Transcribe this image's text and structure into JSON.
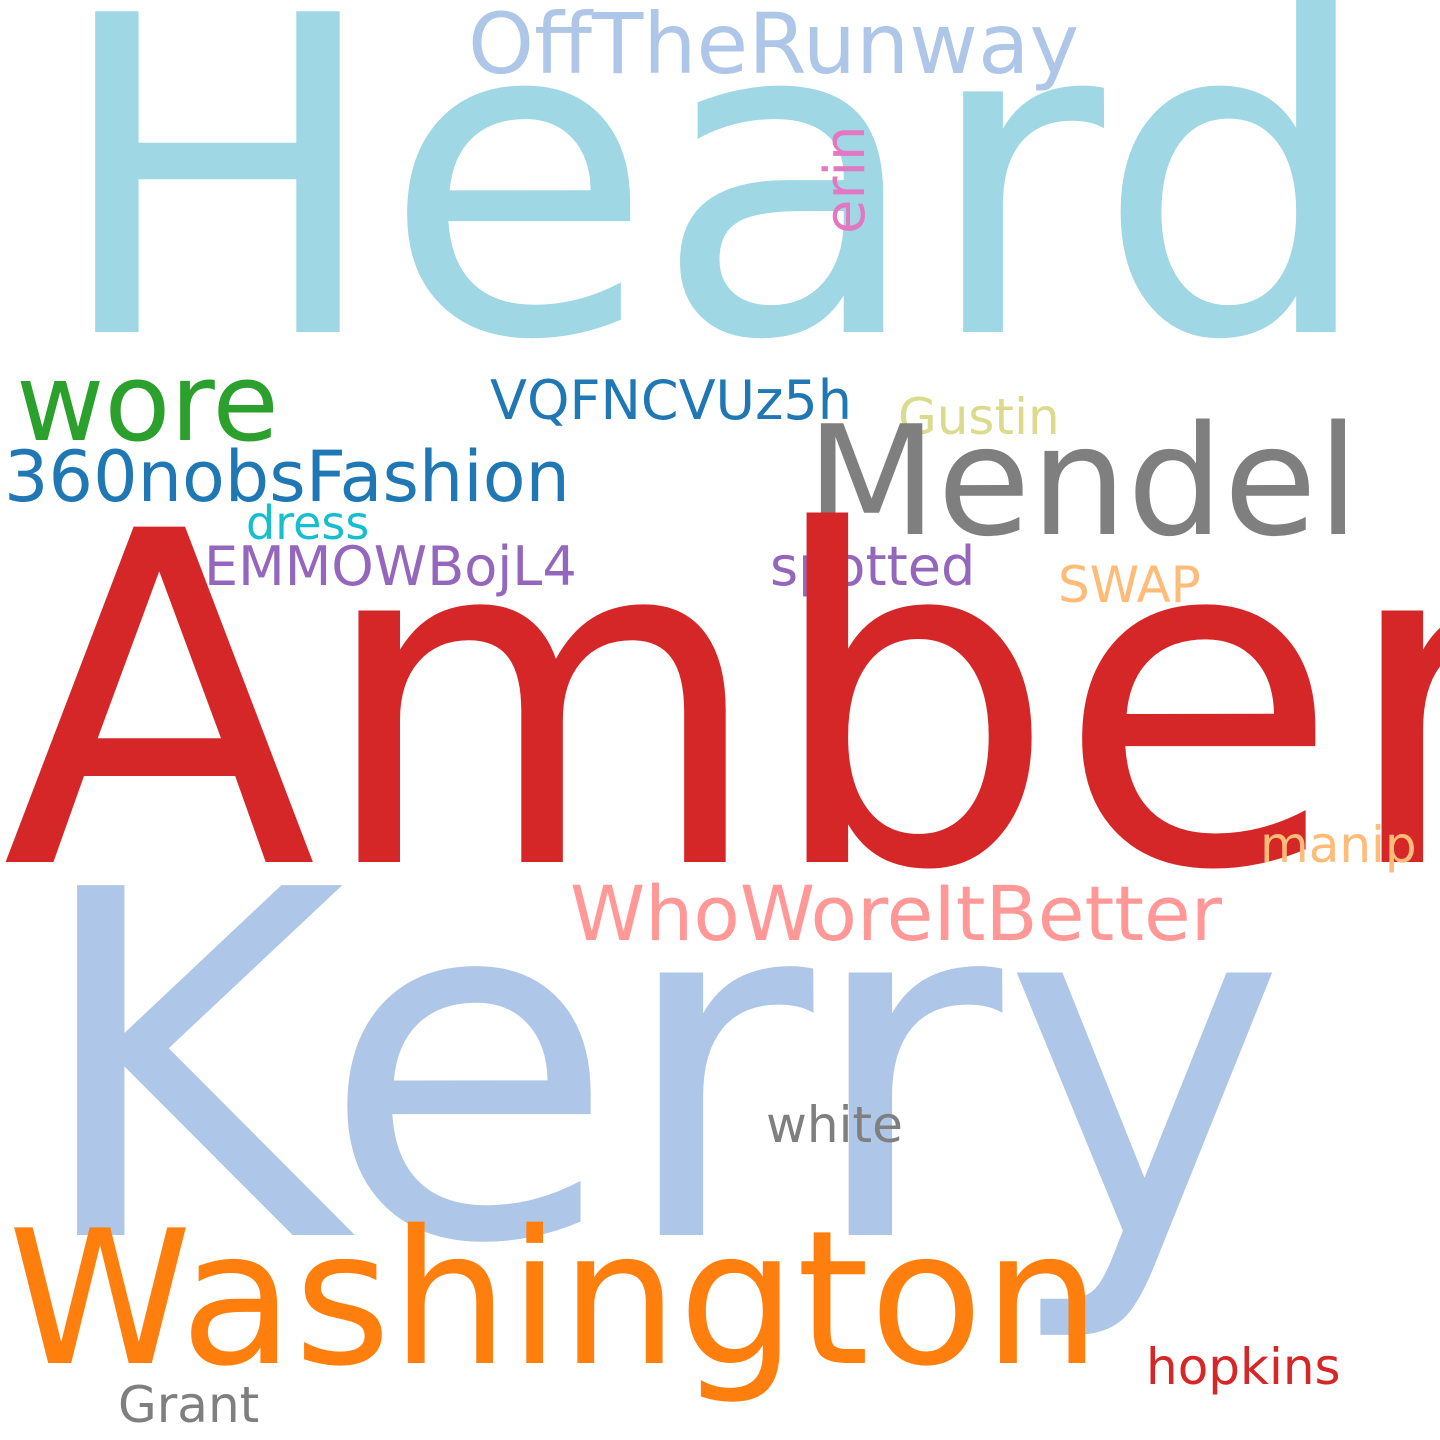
{
  "words": {
    "heard": {
      "text": "Heard",
      "color": "#9fd8e4"
    },
    "offtherunway": {
      "text": "OffTheRunway",
      "color": "#aec7e8"
    },
    "erin": {
      "text": "erin",
      "color": "#e377c2"
    },
    "wore": {
      "text": "wore",
      "color": "#2ca02c"
    },
    "vqfncvuz5h": {
      "text": "VQFNCVUz5h",
      "color": "#1f77b4"
    },
    "gustin": {
      "text": "Gustin",
      "color": "#dbdb8d"
    },
    "mendel": {
      "text": "Mendel",
      "color": "#7f7f7f"
    },
    "nobsfashion": {
      "text": "360nobsFashion",
      "color": "#1f77b4"
    },
    "dress": {
      "text": "dress",
      "color": "#17becf"
    },
    "emmowbojl4": {
      "text": "EMMOWBojL4",
      "color": "#9467bd"
    },
    "spotted": {
      "text": "spotted",
      "color": "#9467bd"
    },
    "swap": {
      "text": "SWAP",
      "color": "#ffbb78"
    },
    "amber": {
      "text": "Amber",
      "color": "#d62728"
    },
    "manip": {
      "text": "manip",
      "color": "#ffbb78"
    },
    "whoworeitbetter": {
      "text": "WhoWoreItBetter",
      "color": "#ff9896"
    },
    "kerry": {
      "text": "Kerry",
      "color": "#aec7e8"
    },
    "white": {
      "text": "white",
      "color": "#7f7f7f"
    },
    "washington": {
      "text": "Washington",
      "color": "#ff7f0e"
    },
    "hopkins": {
      "text": "hopkins",
      "color": "#d62728"
    },
    "grant": {
      "text": "Grant",
      "color": "#7f7f7f"
    }
  }
}
